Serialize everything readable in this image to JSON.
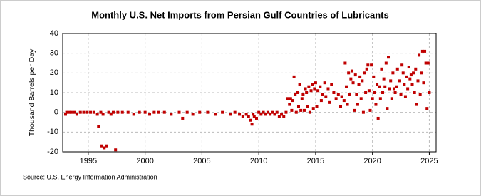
{
  "chart_data": {
    "type": "scatter",
    "title": "Monthly U.S. Net Imports from Persian Gulf Countries of Lubricants",
    "y_label": "Thousand Barrels per Day",
    "source": "Source: U.S. Energy Information Administration",
    "color": "#c00000",
    "grid": true,
    "xlim": [
      1992.75,
      2025.6
    ],
    "ylim": [
      -20,
      40
    ],
    "xticks": [
      1995,
      2000,
      2005,
      2010,
      2015,
      2020,
      2025
    ],
    "yticks": [
      -20,
      -10,
      0,
      10,
      20,
      30,
      40
    ],
    "x": [
      1993.0,
      1993.1,
      1993.3,
      1993.5,
      1993.8,
      1994.0,
      1994.3,
      1994.6,
      1994.9,
      1995.2,
      1995.5,
      1995.8,
      1995.9,
      1996.1,
      1996.2,
      1996.3,
      1996.4,
      1996.6,
      1996.8,
      1997.0,
      1997.2,
      1997.4,
      1997.6,
      1998.0,
      1998.5,
      1999.0,
      1999.5,
      2000.0,
      2000.4,
      2000.8,
      2001.2,
      2001.7,
      2002.3,
      2003.0,
      2003.3,
      2003.7,
      2004.2,
      2004.8,
      2005.5,
      2006.2,
      2006.8,
      2007.5,
      2007.9,
      2008.3,
      2008.6,
      2008.9,
      2009.1,
      2009.3,
      2009.4,
      2009.5,
      2009.6,
      2009.8,
      2010.0,
      2010.2,
      2010.4,
      2010.6,
      2010.8,
      2011.0,
      2011.2,
      2011.4,
      2011.6,
      2011.8,
      2012.0,
      2012.2,
      2012.4,
      2012.5,
      2012.7,
      2012.8,
      2012.9,
      2013.0,
      2013.1,
      2013.2,
      2013.3,
      2013.4,
      2013.5,
      2013.6,
      2013.7,
      2013.8,
      2013.9,
      2014.0,
      2014.1,
      2014.2,
      2014.3,
      2014.4,
      2014.5,
      2014.6,
      2014.7,
      2014.8,
      2014.9,
      2015.0,
      2015.1,
      2015.2,
      2015.4,
      2015.5,
      2015.6,
      2015.8,
      2015.9,
      2016.1,
      2016.2,
      2016.4,
      2016.6,
      2016.8,
      2017.0,
      2017.2,
      2017.3,
      2017.5,
      2017.6,
      2017.7,
      2017.8,
      2017.9,
      2018.0,
      2018.1,
      2018.2,
      2018.3,
      2018.4,
      2018.5,
      2018.6,
      2018.7,
      2018.8,
      2018.9,
      2019.0,
      2019.1,
      2019.2,
      2019.3,
      2019.4,
      2019.5,
      2019.6,
      2019.7,
      2019.8,
      2019.9,
      2020.0,
      2020.1,
      2020.2,
      2020.3,
      2020.4,
      2020.5,
      2020.6,
      2020.7,
      2020.8,
      2020.9,
      2021.0,
      2021.1,
      2021.2,
      2021.3,
      2021.4,
      2021.5,
      2021.6,
      2021.7,
      2021.8,
      2021.9,
      2022.0,
      2022.1,
      2022.2,
      2022.4,
      2022.5,
      2022.6,
      2022.7,
      2022.8,
      2022.9,
      2023.0,
      2023.1,
      2023.2,
      2023.3,
      2023.4,
      2023.5,
      2023.6,
      2023.7,
      2023.8,
      2023.9,
      2024.0,
      2024.1,
      2024.2,
      2024.3,
      2024.4,
      2024.5,
      2024.6,
      2024.7,
      2024.8,
      2024.9,
      2025.0
    ],
    "values": [
      -1,
      0,
      0,
      0,
      0,
      -1,
      0,
      0,
      0,
      0,
      0,
      -1,
      -7,
      0,
      -17,
      -1,
      -18,
      -17,
      0,
      -1,
      0,
      -19,
      0,
      0,
      0,
      -1,
      0,
      0,
      -1,
      0,
      0,
      0,
      -1,
      0,
      -3,
      0,
      -1,
      0,
      0,
      -1,
      0,
      -1,
      0,
      -1,
      -2,
      -1,
      -2,
      -4,
      -6,
      -1,
      -2,
      -3,
      0,
      -1,
      0,
      -1,
      0,
      -1,
      0,
      -1,
      0,
      -2,
      -1,
      -2,
      0,
      7,
      4,
      7,
      1,
      6,
      18,
      9,
      0,
      10,
      3,
      14,
      1,
      7,
      9,
      1,
      12,
      10,
      3,
      13,
      0,
      11,
      14,
      2,
      12,
      15,
      3,
      11,
      13,
      6,
      9,
      15,
      8,
      12,
      5,
      14,
      10,
      7,
      9,
      3,
      8,
      6,
      25,
      13,
      4,
      20,
      9,
      17,
      21,
      15,
      1,
      19,
      9,
      4,
      14,
      18,
      7,
      16,
      0,
      20,
      10,
      22,
      24,
      11,
      1,
      24,
      7,
      18,
      10,
      4,
      14,
      -3,
      13,
      7,
      22,
      10,
      17,
      13,
      25,
      2,
      28,
      12,
      16,
      7,
      20,
      12,
      10,
      13,
      22,
      16,
      9,
      24,
      20,
      14,
      8,
      18,
      12,
      23,
      17,
      19,
      14,
      20,
      10,
      22,
      4,
      16,
      29,
      9,
      20,
      31,
      15,
      31,
      25,
      2,
      25,
      10
    ]
  }
}
